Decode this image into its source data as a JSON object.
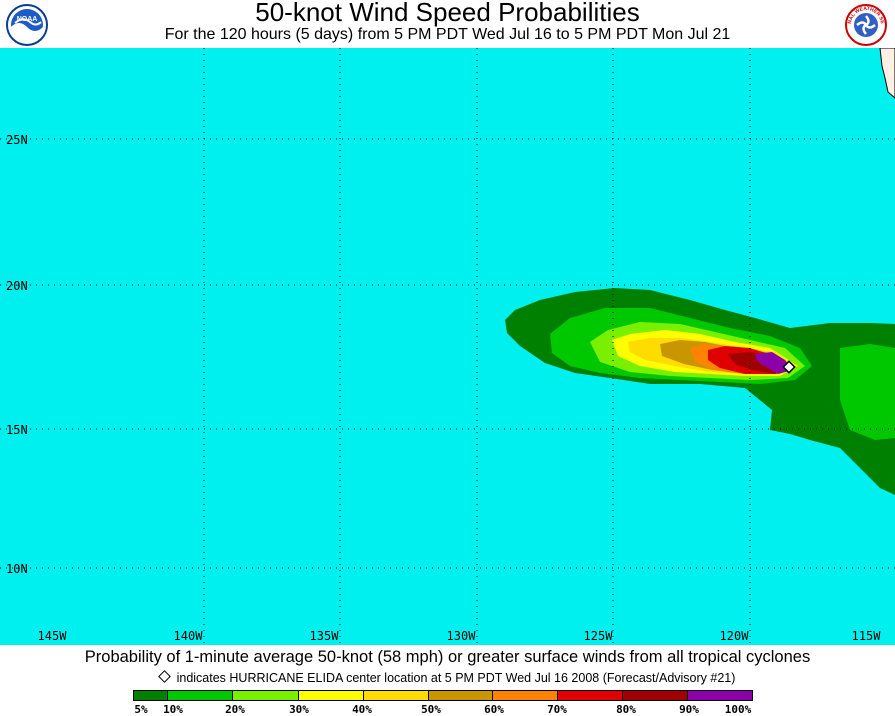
{
  "header": {
    "title": "50-knot Wind Speed Probabilities",
    "subtitle": "For the 120 hours (5 days) from 5 PM PDT Wed Jul 16 to 5 PM PDT Mon Jul 21",
    "left_logo_text": "NOAA",
    "right_logo_text": "NATIONAL WEATHER SERVICE"
  },
  "map": {
    "ocean_color": "#00f0f0",
    "land_color": "#fff0e6",
    "latitude_labels": [
      "25N",
      "20N",
      "15N",
      "10N"
    ],
    "longitude_labels": [
      "145W",
      "140W",
      "135W",
      "130W",
      "125W",
      "120W",
      "115W"
    ],
    "storm_marker": {
      "label": "HURRICANE ELIDA",
      "lat": 17.2,
      "lon": -118.0
    }
  },
  "footer": {
    "caption": "Probability of 1-minute average 50-knot (58 mph) or greater surface winds from all tropical cyclones",
    "note": "indicates HURRICANE ELIDA center location at 5 PM PDT Wed Jul 16 2008 (Forecast/Advisory #21)"
  },
  "legend": {
    "bins": [
      {
        "range": "5-10%",
        "color": "#008000"
      },
      {
        "range": "10-20%",
        "color": "#00c800"
      },
      {
        "range": "20-30%",
        "color": "#78f000"
      },
      {
        "range": "30-40%",
        "color": "#ffff00"
      },
      {
        "range": "40-50%",
        "color": "#ffdc00"
      },
      {
        "range": "50-60%",
        "color": "#c89600"
      },
      {
        "range": "60-70%",
        "color": "#ff8200"
      },
      {
        "range": "70-80%",
        "color": "#e00000"
      },
      {
        "range": "80-90%",
        "color": "#a00000"
      },
      {
        "range": "90-100%",
        "color": "#8c00aa"
      }
    ],
    "tick_labels": [
      "5%",
      "10%",
      "20%",
      "30%",
      "40%",
      "50%",
      "60%",
      "70%",
      "80%",
      "90%",
      "100%"
    ]
  }
}
